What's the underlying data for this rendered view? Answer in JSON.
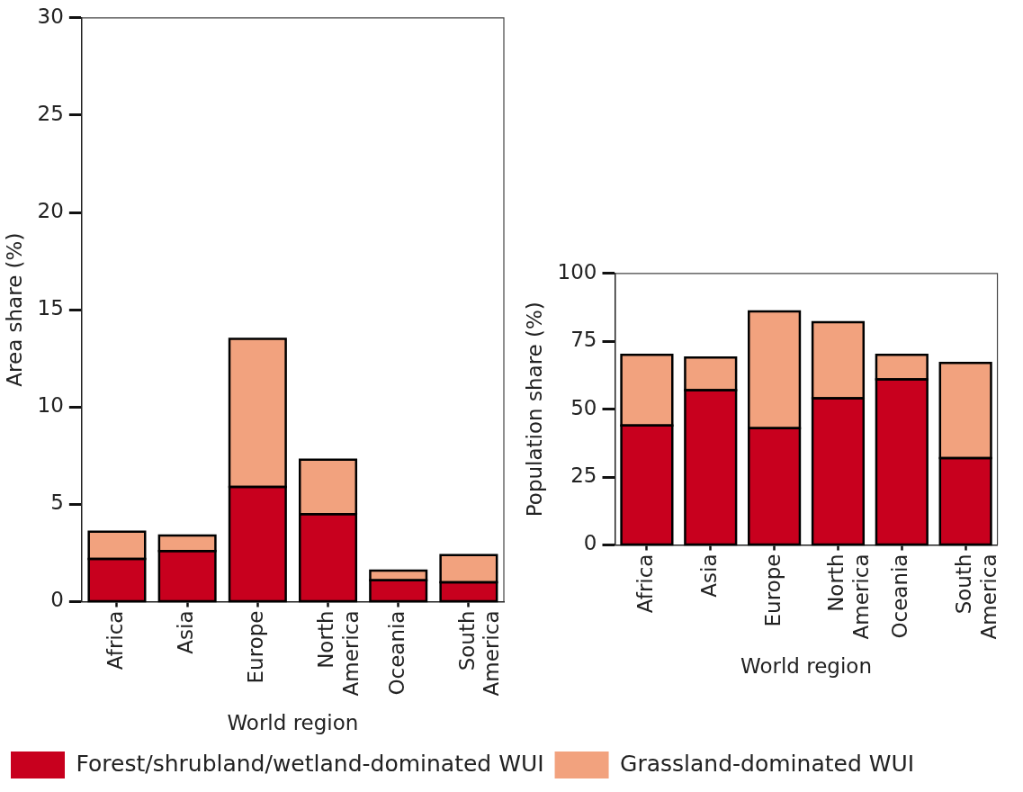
{
  "chart_data": [
    {
      "type": "bar",
      "stacked": true,
      "ylabel": "Area share (%)",
      "xlabel": "World region",
      "categories": [
        "Africa",
        "Asia",
        "Europe",
        "North America",
        "Oceania",
        "South America"
      ],
      "ylim": [
        0,
        30
      ],
      "yticks": [
        0,
        5,
        10,
        15,
        20,
        25,
        30
      ],
      "grid": false,
      "legend": "bottom",
      "series": [
        {
          "name": "Forest/shrubland/wetland-dominated WUI",
          "color": "#c8001e",
          "values": [
            2.2,
            2.6,
            5.9,
            4.5,
            1.1,
            1.0
          ]
        },
        {
          "name": "Grassland-dominated WUI",
          "color": "#f2a27e",
          "values": [
            1.4,
            0.8,
            7.6,
            2.8,
            0.5,
            1.4
          ]
        }
      ]
    },
    {
      "type": "bar",
      "stacked": true,
      "ylabel": "Population share (%)",
      "xlabel": "World region",
      "categories": [
        "Africa",
        "Asia",
        "Europe",
        "North America",
        "Oceania",
        "South America"
      ],
      "ylim": [
        0,
        100
      ],
      "yticks": [
        0,
        25,
        50,
        75,
        100
      ],
      "grid": false,
      "series": [
        {
          "color": "#c8001e",
          "values": [
            44,
            57,
            43,
            54,
            61,
            32
          ]
        },
        {
          "color": "#f2a27e",
          "values": [
            26,
            12,
            43,
            28,
            9,
            35
          ]
        }
      ]
    }
  ]
}
